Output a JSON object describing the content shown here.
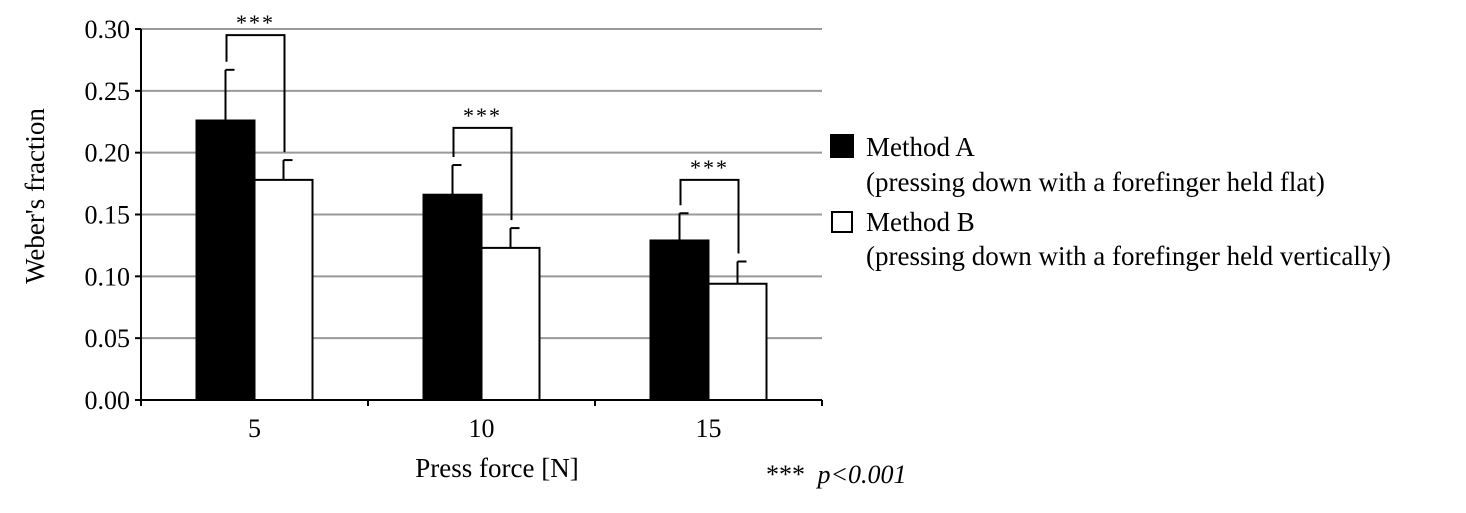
{
  "chart_data": {
    "type": "bar",
    "title": "",
    "xlabel": "Press force [N]",
    "ylabel": "Weber's fraction",
    "ylim": [
      0,
      0.3
    ],
    "yticks": [
      "0.00",
      "0.05",
      "0.10",
      "0.15",
      "0.20",
      "0.25",
      "0.30"
    ],
    "categories": [
      "5",
      "10",
      "15"
    ],
    "grid": "horizontal",
    "legend_position": "right",
    "series": [
      {
        "name": "Method A",
        "description": "(pressing down with a forefinger held flat)",
        "fill": "#000000",
        "values": [
          0.226,
          0.166,
          0.129
        ],
        "errors": [
          0.041,
          0.024,
          0.022
        ]
      },
      {
        "name": "Method B",
        "description": "(pressing down with a forefinger held vertically)",
        "fill": "#ffffff",
        "values": [
          0.178,
          0.123,
          0.094
        ],
        "errors": [
          0.016,
          0.016,
          0.018
        ]
      }
    ],
    "significance": {
      "marker": "***",
      "bracket_tops": [
        0.295,
        0.22,
        0.178
      ]
    },
    "note": {
      "marker": "***",
      "text": "p<0.001"
    }
  },
  "colors": {
    "grid": "#999999",
    "axis": "#000000"
  }
}
